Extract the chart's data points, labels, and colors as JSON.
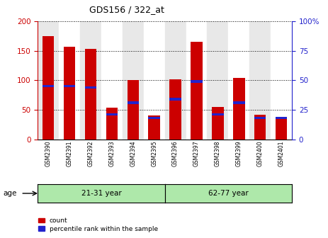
{
  "title": "GDS156 / 322_at",
  "samples": [
    "GSM2390",
    "GSM2391",
    "GSM2392",
    "GSM2393",
    "GSM2394",
    "GSM2395",
    "GSM2396",
    "GSM2397",
    "GSM2398",
    "GSM2399",
    "GSM2400",
    "GSM2401"
  ],
  "count_values": [
    175,
    157,
    153,
    54,
    100,
    40,
    102,
    166,
    55,
    104,
    41,
    37
  ],
  "percentile_values": [
    45,
    45,
    44,
    21,
    31,
    18,
    34,
    49,
    21,
    31,
    18,
    18
  ],
  "group1_label": "21-31 year",
  "group2_label": "62-77 year",
  "left_ylim": [
    0,
    200
  ],
  "right_ylim": [
    0,
    100
  ],
  "left_yticks": [
    0,
    50,
    100,
    150,
    200
  ],
  "right_yticks": [
    0,
    25,
    50,
    75,
    100
  ],
  "right_yticklabels": [
    "0",
    "25",
    "50",
    "75",
    "100%"
  ],
  "bar_color_red": "#cc0000",
  "bar_color_blue": "#2222cc",
  "age_label": "age",
  "legend_count": "count",
  "legend_percentile": "percentile rank within the sample",
  "group_bg_color": "#aee8aa",
  "left_axis_color": "#cc0000",
  "right_axis_color": "#2222cc",
  "col_bg_light": "#e8e8e8",
  "col_bg_white": "#ffffff"
}
